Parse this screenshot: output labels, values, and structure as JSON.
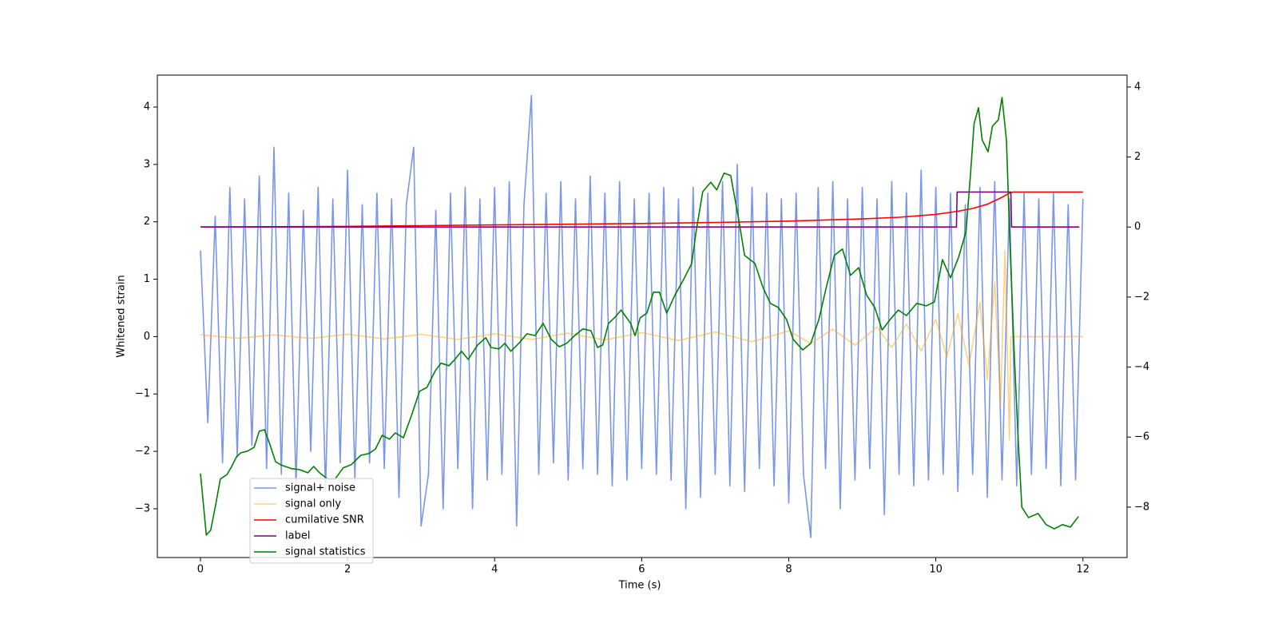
{
  "chart_data": {
    "type": "line",
    "xlabel": "Time (s)",
    "ylabel": "Whitened strain",
    "xlim": [
      -0.586,
      12.6
    ],
    "xticks": [
      0,
      2,
      4,
      6,
      8,
      10,
      12
    ],
    "ylim": [
      -3.85,
      4.557
    ],
    "yticks": [
      {
        "value": -3,
        "label": "−3"
      },
      {
        "value": -2,
        "label": "−2"
      },
      {
        "value": -1,
        "label": "−1"
      },
      0,
      1,
      2,
      3,
      4
    ],
    "y2lim": [
      -9.44,
      4.34
    ],
    "y2ticks": [
      {
        "value": -8,
        "label": "−8"
      },
      {
        "value": -6,
        "label": "−6"
      },
      {
        "value": -4,
        "label": "−4"
      },
      {
        "value": -2,
        "label": "−2"
      },
      0,
      2,
      4
    ],
    "legend": "lower-left",
    "series": [
      {
        "name": "signal+ noise",
        "color": "#4169e1",
        "opacity": 0.7,
        "x": [
          0,
          0.1,
          0.2,
          0.3,
          0.4,
          0.5,
          0.6,
          0.7,
          0.8,
          0.9,
          1,
          1.1,
          1.2,
          1.3,
          1.4,
          1.5,
          1.6,
          1.7,
          1.8,
          1.9,
          2,
          2.1,
          2.2,
          2.3,
          2.4,
          2.5,
          2.6,
          2.7,
          2.8,
          2.9,
          3,
          3.1,
          3.2,
          3.3,
          3.4,
          3.5,
          3.6,
          3.7,
          3.8,
          3.9,
          4,
          4.1,
          4.2,
          4.3,
          4.4,
          4.5,
          4.6,
          4.7,
          4.8,
          4.9,
          5,
          5.1,
          5.2,
          5.3,
          5.4,
          5.5,
          5.6,
          5.7,
          5.8,
          5.9,
          6,
          6.1,
          6.2,
          6.3,
          6.4,
          6.5,
          6.6,
          6.7,
          6.8,
          6.9,
          7,
          7.1,
          7.2,
          7.3,
          7.4,
          7.5,
          7.6,
          7.7,
          7.8,
          7.9,
          8,
          8.1,
          8.2,
          8.3,
          8.4,
          8.5,
          8.6,
          8.7,
          8.8,
          8.9,
          9,
          9.1,
          9.2,
          9.3,
          9.4,
          9.5,
          9.6,
          9.7,
          9.8,
          9.9,
          10,
          10.1,
          10.2,
          10.3,
          10.4,
          10.5,
          10.6,
          10.7,
          10.8,
          10.9,
          11,
          11.1,
          11.2,
          11.3,
          11.4,
          11.5,
          11.6,
          11.7,
          11.8,
          11.9,
          12
        ],
        "values": [
          1.5,
          -1.5,
          2.1,
          -2.2,
          2.6,
          -2.1,
          2.4,
          -1.9,
          2.8,
          -2.3,
          3.3,
          -2.4,
          2.5,
          -2.6,
          2.2,
          -2.0,
          2.6,
          -2.7,
          2.4,
          -2.2,
          2.9,
          -2.5,
          2.3,
          -2.2,
          2.5,
          -2.3,
          2.4,
          -2.8,
          2.3,
          3.3,
          -3.3,
          -2.4,
          2.2,
          -3.0,
          2.5,
          -2.3,
          2.6,
          -3.0,
          2.4,
          -2.5,
          2.6,
          -2.4,
          2.7,
          -3.3,
          2.3,
          4.2,
          -2.4,
          2.5,
          -2.2,
          2.7,
          -2.5,
          2.4,
          -2.3,
          2.8,
          -2.4,
          2.5,
          -2.6,
          2.7,
          -2.5,
          2.4,
          -2.3,
          2.5,
          -2.4,
          2.6,
          -2.5,
          2.4,
          -3.0,
          2.6,
          -2.8,
          2.5,
          -2.4,
          2.7,
          -2.6,
          3.0,
          -2.7,
          2.6,
          -2.3,
          2.5,
          -2.6,
          2.4,
          -2.9,
          2.5,
          -2.4,
          -3.5,
          2.6,
          -2.3,
          2.7,
          -3.0,
          2.4,
          -2.5,
          2.6,
          -2.3,
          2.4,
          -3.1,
          2.7,
          -2.4,
          2.5,
          -2.6,
          2.9,
          -2.5,
          2.6,
          -2.4,
          2.5,
          -2.7,
          2.3,
          -2.4,
          2.6,
          -2.8,
          2.7,
          -2.5,
          2.4,
          -2.6,
          2.5,
          -2.4,
          2.4,
          -2.3,
          2.5,
          -2.6,
          2.3,
          -2.5,
          2.4
        ]
      },
      {
        "name": "signal only",
        "color": "#ffa500",
        "opacity": 0.5,
        "x": [
          0,
          0.5,
          1,
          1.5,
          2,
          2.5,
          3,
          3.5,
          4,
          4.5,
          5,
          5.5,
          6,
          6.5,
          7,
          7.5,
          8,
          8.3,
          8.6,
          8.9,
          9.2,
          9.4,
          9.6,
          9.8,
          10,
          10.15,
          10.3,
          10.45,
          10.6,
          10.7,
          10.8,
          10.88,
          10.94,
          11.0,
          11.02,
          12
        ],
        "values": [
          0.03,
          -0.03,
          0.03,
          -0.03,
          0.04,
          -0.04,
          0.04,
          -0.05,
          0.05,
          -0.05,
          0.06,
          -0.06,
          0.07,
          -0.07,
          0.08,
          -0.09,
          0.1,
          -0.12,
          0.13,
          -0.15,
          0.17,
          -0.19,
          0.22,
          -0.25,
          0.3,
          -0.35,
          0.4,
          -0.5,
          0.6,
          -0.75,
          0.95,
          -1.2,
          1.5,
          -1.8,
          0,
          0
        ]
      },
      {
        "name": "cumilative SNR",
        "color": "#ff0000",
        "axis": "y2",
        "x": [
          0,
          1,
          2,
          3,
          4,
          5,
          6,
          7,
          8,
          9,
          9.5,
          10,
          10.3,
          10.5,
          10.7,
          10.9,
          11,
          11.05,
          12
        ],
        "values": [
          0,
          0.01,
          0.02,
          0.04,
          0.06,
          0.08,
          0.1,
          0.13,
          0.17,
          0.23,
          0.28,
          0.36,
          0.45,
          0.53,
          0.65,
          0.85,
          0.97,
          1,
          1
        ]
      },
      {
        "name": "label",
        "color": "#800080",
        "axis": "y2",
        "x": [
          0,
          10.28,
          10.29,
          11.02,
          11.03,
          11.95
        ],
        "values": [
          0,
          0,
          1,
          1,
          0,
          0
        ]
      },
      {
        "name": "signal statistics",
        "color": "#008000",
        "axis": "y2",
        "x": [
          0,
          0.08,
          0.14,
          0.21,
          0.27,
          0.36,
          0.42,
          0.49,
          0.55,
          0.64,
          0.73,
          0.8,
          0.87,
          0.94,
          1.02,
          1.1,
          1.24,
          1.35,
          1.46,
          1.54,
          1.62,
          1.73,
          1.83,
          1.94,
          2.05,
          2.18,
          2.29,
          2.38,
          2.47,
          2.57,
          2.65,
          2.76,
          2.87,
          2.98,
          3.08,
          3.19,
          3.27,
          3.38,
          3.46,
          3.55,
          3.64,
          3.77,
          3.88,
          3.95,
          4.06,
          4.14,
          4.22,
          4.33,
          4.44,
          4.55,
          4.66,
          4.77,
          4.88,
          4.98,
          5.09,
          5.2,
          5.31,
          5.4,
          5.47,
          5.55,
          5.64,
          5.72,
          5.85,
          5.91,
          5.98,
          6.07,
          6.16,
          6.24,
          6.34,
          6.45,
          6.57,
          6.68,
          6.74,
          6.83,
          6.94,
          7.02,
          7.12,
          7.21,
          7.32,
          7.4,
          7.54,
          7.65,
          7.75,
          7.86,
          7.97,
          8.06,
          8.19,
          8.3,
          8.41,
          8.51,
          8.62,
          8.73,
          8.84,
          8.95,
          9.06,
          9.17,
          9.27,
          9.38,
          9.49,
          9.6,
          9.74,
          9.87,
          9.98,
          10.09,
          10.2,
          10.31,
          10.41,
          10.47,
          10.52,
          10.58,
          10.63,
          10.71,
          10.77,
          10.85,
          10.9,
          10.96,
          11.01,
          11.07,
          11.12,
          11.17,
          11.26,
          11.39,
          11.5,
          11.61,
          11.72,
          11.83,
          11.94
        ],
        "values": [
          -7.04,
          -8.8,
          -8.66,
          -7.9,
          -7.2,
          -7.07,
          -6.86,
          -6.56,
          -6.45,
          -6.4,
          -6.29,
          -5.83,
          -5.79,
          -6.18,
          -6.7,
          -6.8,
          -6.9,
          -6.93,
          -7.02,
          -6.84,
          -7.02,
          -7.2,
          -7.2,
          -6.88,
          -6.79,
          -6.52,
          -6.47,
          -6.34,
          -5.95,
          -6.06,
          -5.88,
          -6.02,
          -5.38,
          -4.69,
          -4.58,
          -4.12,
          -3.89,
          -3.96,
          -3.78,
          -3.55,
          -3.78,
          -3.37,
          -3.16,
          -3.44,
          -3.48,
          -3.32,
          -3.55,
          -3.32,
          -3.05,
          -3.1,
          -2.75,
          -3.21,
          -3.42,
          -3.32,
          -3.1,
          -2.91,
          -2.96,
          -3.44,
          -3.37,
          -2.75,
          -2.57,
          -2.37,
          -2.75,
          -3.1,
          -2.59,
          -2.46,
          -1.86,
          -1.86,
          -2.46,
          -1.95,
          -1.5,
          -1.04,
          -0.13,
          1.01,
          1.28,
          1.06,
          1.54,
          1.47,
          0.21,
          -0.81,
          -1.04,
          -1.73,
          -2.18,
          -2.3,
          -2.64,
          -3.21,
          -3.51,
          -3.32,
          -2.64,
          -1.73,
          -0.81,
          -0.63,
          -1.38,
          -1.16,
          -1.95,
          -2.3,
          -2.94,
          -2.64,
          -2.37,
          -2.53,
          -2.18,
          -2.25,
          -2.14,
          -0.93,
          -1.45,
          -0.86,
          -0.13,
          1.47,
          2.95,
          3.41,
          2.49,
          2.15,
          2.88,
          3.06,
          3.7,
          2.49,
          -0.59,
          -3.78,
          -6.06,
          -8.0,
          -8.3,
          -8.18,
          -8.5,
          -8.62,
          -8.5,
          -8.57,
          -8.27
        ]
      }
    ]
  }
}
